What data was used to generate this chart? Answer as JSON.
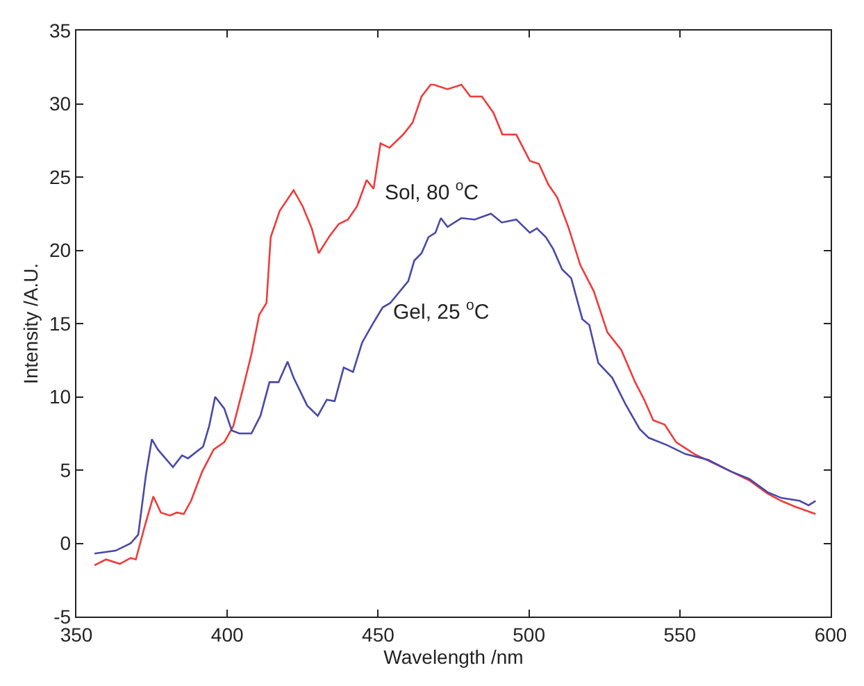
{
  "chart_data": {
    "type": "line",
    "xlabel": "Wavelength /nm",
    "ylabel": "Intensity /A.U.",
    "xlim": [
      350,
      600
    ],
    "xticks": [
      350,
      400,
      450,
      500,
      550,
      600
    ],
    "ylim": [
      -5,
      35
    ],
    "yticks": [
      -5,
      0,
      5,
      10,
      15,
      20,
      25,
      30,
      35
    ],
    "marker": "none",
    "line_style": "solid",
    "series": [
      {
        "name": "Sol, 80 $^{o}$C",
        "color": "#f03a3a",
        "x": [
          356,
          359.8,
          364.4,
          368,
          369.7,
          372.7,
          375.5,
          378,
          381,
          383.3,
          385.6,
          388,
          391.7,
          395.5,
          399,
          402,
          405,
          408,
          410.6,
          413,
          414.4,
          417.4,
          422,
          425,
          428,
          430.3,
          434,
          437,
          440,
          443,
          446.2,
          448.5,
          450.8,
          453.8,
          458.3,
          461.4,
          464.4,
          467.4,
          468.5,
          473,
          477.6,
          480.6,
          484.4,
          488.2,
          491.2,
          495.8,
          500.3,
          503.3,
          506.4,
          509.4,
          513.2,
          517,
          521.5,
          526,
          530.6,
          535.2,
          538.2,
          541.2,
          545,
          548.8,
          554.8,
          560.9,
          567,
          573,
          579,
          583.6,
          588.2,
          595
        ],
        "values": [
          -1.5,
          -1.1,
          -1.4,
          -1.0,
          -1.1,
          1.2,
          3.2,
          2.1,
          1.9,
          2.1,
          2.0,
          2.9,
          4.9,
          6.4,
          6.9,
          8.0,
          10.4,
          12.9,
          15.6,
          16.4,
          20.9,
          22.7,
          24.1,
          23.0,
          21.5,
          19.8,
          21.0,
          21.8,
          22.1,
          23.0,
          24.8,
          24.2,
          27.3,
          27.0,
          27.9,
          28.7,
          30.5,
          31.3,
          31.3,
          31.0,
          31.3,
          30.5,
          30.5,
          29.4,
          27.9,
          27.9,
          26.1,
          25.9,
          24.5,
          23.6,
          21.5,
          19.0,
          17.2,
          14.4,
          13.2,
          11.0,
          9.8,
          8.4,
          8.1,
          6.9,
          6.1,
          5.5,
          4.9,
          4.3,
          3.4,
          2.9,
          2.5,
          2.0
        ]
      },
      {
        "name": "Gel, 25 $^{o}$C",
        "color": "#4848a8",
        "x": [
          356,
          363,
          368,
          370.5,
          373,
          375,
          377,
          382,
          385,
          387,
          392,
          394,
          396,
          399,
          401.5,
          404,
          408,
          411,
          414,
          417,
          420,
          422,
          426.5,
          430,
          433,
          435.6,
          438.6,
          441.7,
          444.7,
          448,
          451.5,
          454,
          460,
          462,
          464.4,
          466.7,
          469,
          470.8,
          473,
          477.6,
          482,
          487.4,
          491,
          495.8,
          500.3,
          502.6,
          505.6,
          508,
          511,
          514,
          517.7,
          520,
          523,
          527.6,
          532,
          536.7,
          539.7,
          545.8,
          551.8,
          559.4,
          567,
          573,
          579,
          583.6,
          589.7,
          592.7,
          595
        ],
        "values": [
          -0.7,
          -0.5,
          0,
          0.6,
          4.6,
          7.1,
          6.4,
          5.2,
          6.0,
          5.8,
          6.6,
          8.0,
          10.0,
          9.2,
          7.7,
          7.5,
          7.5,
          8.7,
          11.0,
          11.0,
          12.4,
          11.3,
          9.4,
          8.7,
          9.8,
          9.7,
          12.0,
          11.7,
          13.7,
          14.9,
          16.1,
          16.4,
          17.9,
          19.3,
          19.8,
          20.9,
          21.2,
          22.2,
          21.6,
          22.2,
          22.1,
          22.5,
          21.9,
          22.1,
          21.2,
          21.5,
          20.9,
          20.1,
          18.7,
          18.1,
          15.3,
          14.9,
          12.3,
          11.3,
          9.5,
          7.8,
          7.2,
          6.7,
          6.1,
          5.7,
          4.9,
          4.4,
          3.5,
          3.1,
          2.9,
          2.6,
          2.9
        ]
      }
    ]
  }
}
